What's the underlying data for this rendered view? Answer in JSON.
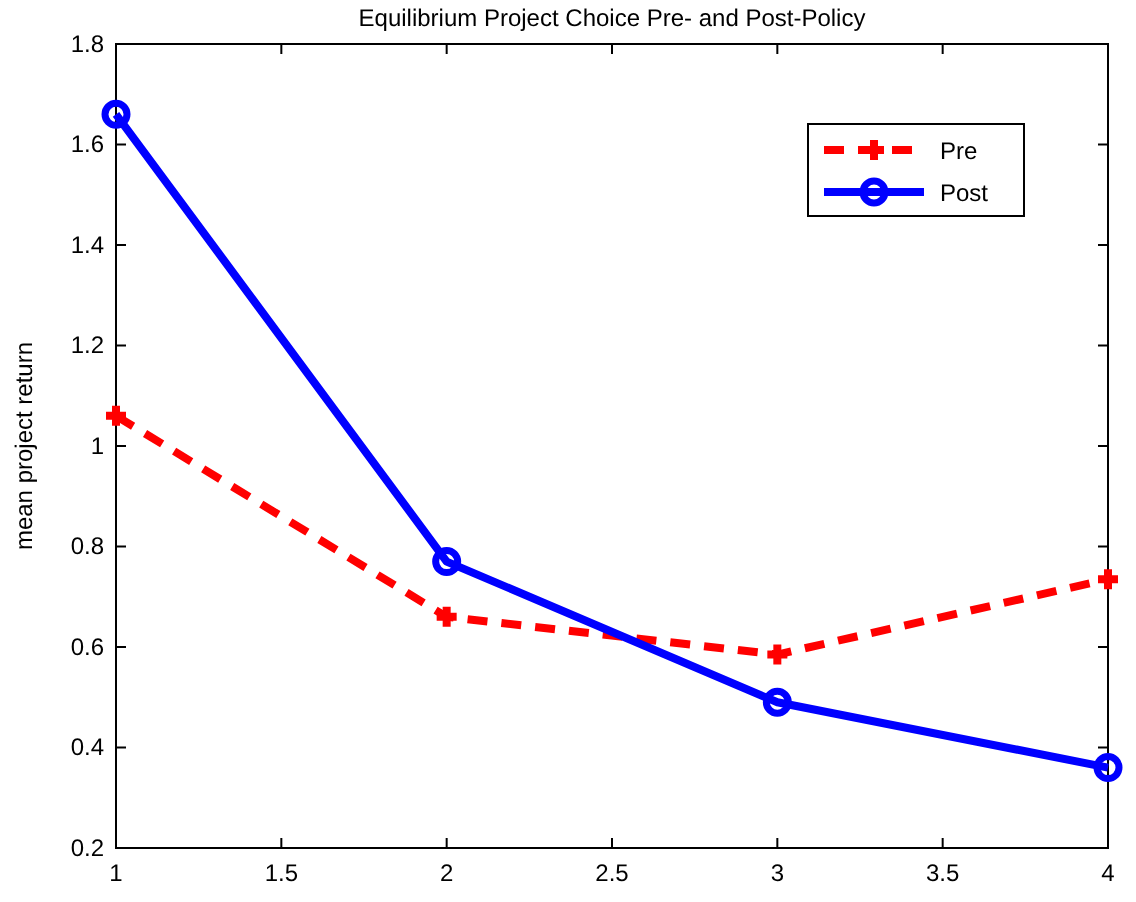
{
  "chart_data": {
    "type": "line",
    "title": "Equilibrium Project Choice Pre- and Post-Policy",
    "ylabel": "mean project return",
    "x": [
      1,
      2,
      3,
      4
    ],
    "xlim": [
      1,
      4
    ],
    "xticks": [
      1,
      1.5,
      2,
      2.5,
      3,
      3.5,
      4
    ],
    "ylim": [
      0.2,
      1.8
    ],
    "yticks": [
      0.2,
      0.4,
      0.6,
      0.8,
      1,
      1.2,
      1.4,
      1.6,
      1.8
    ],
    "grid": false,
    "legend": "top right",
    "series": [
      {
        "name": "Pre",
        "color": "#ff0000",
        "values": [
          1.06,
          0.66,
          0.585,
          0.735
        ],
        "marker": "cross",
        "line_style": "dashed"
      },
      {
        "name": "Post",
        "color": "#0000ff",
        "values": [
          1.66,
          0.77,
          0.49,
          0.36
        ],
        "marker": "circle",
        "line_style": "solid"
      }
    ]
  }
}
